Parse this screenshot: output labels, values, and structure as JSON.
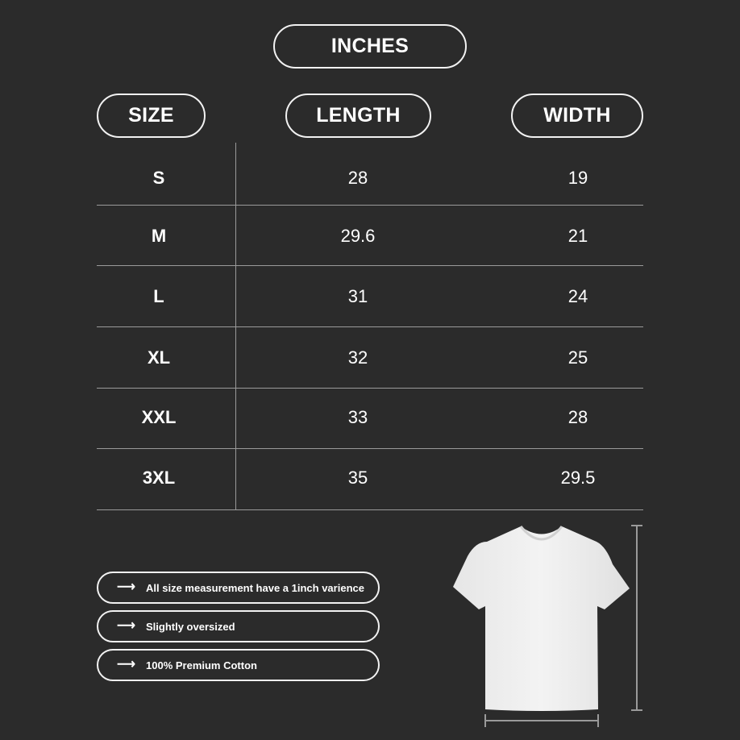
{
  "unit_label": "INCHES",
  "headers": {
    "size": "SIZE",
    "length": "LENGTH",
    "width": "WIDTH"
  },
  "rows": [
    {
      "size": "S",
      "length": "28",
      "width": "19"
    },
    {
      "size": "M",
      "length": "29.6",
      "width": "21"
    },
    {
      "size": "L",
      "length": "31",
      "width": "24"
    },
    {
      "size": "XL",
      "length": "32",
      "width": "25"
    },
    {
      "size": "XXL",
      "length": "33",
      "width": "28"
    },
    {
      "size": "3XL",
      "length": "35",
      "width": "29.5"
    }
  ],
  "notes": [
    {
      "icon": "arrow-right-icon",
      "text": "All size measurement have a 1inch varience"
    },
    {
      "icon": "arrow-right-icon",
      "text": "Slightly oversized"
    },
    {
      "icon": "arrow-right-icon",
      "text": "100% Premium Cotton"
    }
  ],
  "colors": {
    "background": "#2b2b2b",
    "text": "#ffffff",
    "divider": "#9a9a9a"
  }
}
